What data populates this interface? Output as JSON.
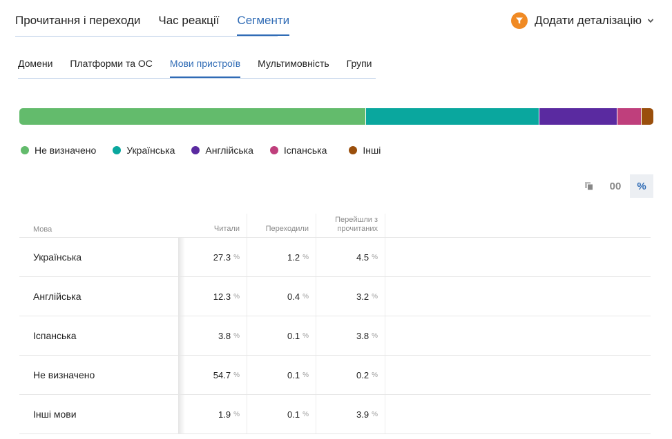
{
  "top_tabs": [
    {
      "label": "Прочитання і переходи"
    },
    {
      "label": "Час реакції"
    },
    {
      "label": "Сегменти"
    }
  ],
  "detail_button": {
    "label": "Додати деталізацію",
    "icon": "funnel-icon"
  },
  "sub_tabs": [
    {
      "label": "Домени"
    },
    {
      "label": "Платформи та ОС"
    },
    {
      "label": "Мови пристроїв"
    },
    {
      "label": "Мультимовність"
    },
    {
      "label": "Групи"
    }
  ],
  "stack_bar": [
    {
      "name": "Не визначено",
      "share": 54.7,
      "color": "#63bb6c"
    },
    {
      "name": "Українська",
      "share": 27.3,
      "color": "#0aa79e"
    },
    {
      "name": "Англійська",
      "share": 12.3,
      "color": "#5a2aa0"
    },
    {
      "name": "Іспанська",
      "share": 3.8,
      "color": "#bf3f7c"
    },
    {
      "name": "Інші",
      "share": 1.9,
      "color": "#9a4f0c"
    }
  ],
  "legend": [
    {
      "label": "Не визначено",
      "color": "#63bb6c"
    },
    {
      "label": "Українська",
      "color": "#0aa79e"
    },
    {
      "label": "Англійська",
      "color": "#5a2aa0"
    },
    {
      "label": "Іспанська",
      "color": "#bf3f7c"
    },
    {
      "label": "Інші",
      "color": "#9a4f0c"
    }
  ],
  "toolbar": {
    "copy_icon": "copy-icon",
    "abs_label": "00",
    "pct_label": "%"
  },
  "table": {
    "headers": {
      "lang": "Мова",
      "read": "Читали",
      "clicked": "Переходили",
      "conv": "Перейшли з прочитаних"
    },
    "pct_sign": "%",
    "rows": [
      {
        "lang": "Українська",
        "read": "27.3",
        "clicked": "1.2",
        "conv": "4.5"
      },
      {
        "lang": "Англійська",
        "read": "12.3",
        "clicked": "0.4",
        "conv": "3.2"
      },
      {
        "lang": "Іспанська",
        "read": "3.8",
        "clicked": "0.1",
        "conv": "3.8"
      },
      {
        "lang": "Не визначено",
        "read": "54.7",
        "clicked": "0.1",
        "conv": "0.2"
      },
      {
        "lang": "Інші мови",
        "read": "1.9",
        "clicked": "0.1",
        "conv": "3.9"
      }
    ]
  }
}
